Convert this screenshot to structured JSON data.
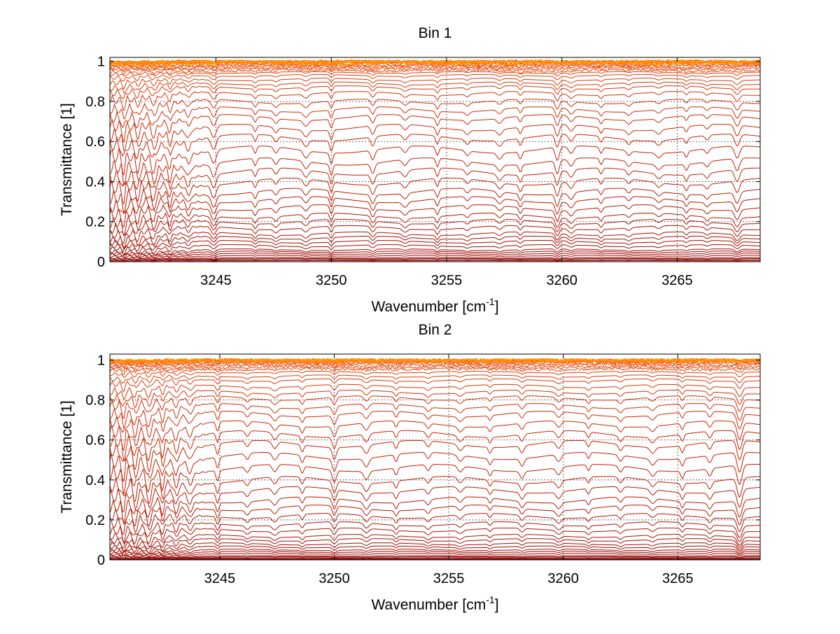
{
  "figure": {
    "background": "#ffffff",
    "grid_color": "#000000",
    "line_colors": {
      "deep": "#8b0000",
      "mid": "#cc2200",
      "top": "#ff6a1a",
      "highlight": "#ff9a00"
    }
  },
  "chart_data": [
    {
      "type": "line",
      "title": "Bin 1",
      "xlabel_main": "Wavenumber [cm",
      "xlabel_sup": "-1",
      "xlabel_end": "]",
      "ylabel": "Transmittance [1]",
      "xlim": [
        3240.4,
        3268.6
      ],
      "ylim": [
        0,
        1.02
      ],
      "xticks": [
        3245,
        3250,
        3255,
        3260,
        3265
      ],
      "xtick_labels": [
        "3245",
        "3250",
        "3255",
        "3260",
        "3265"
      ],
      "yticks": [
        0,
        0.2,
        0.4,
        0.6,
        0.8,
        1
      ],
      "ytick_labels": [
        "0",
        "0.2",
        "0.4",
        "0.6",
        "0.8",
        "1"
      ],
      "grid": true,
      "legend": "none",
      "series_count": 45,
      "series_baseline_levels": [
        0.005,
        0.01,
        0.015,
        0.02,
        0.03,
        0.04,
        0.05,
        0.06,
        0.08,
        0.1,
        0.12,
        0.14,
        0.17,
        0.2,
        0.23,
        0.27,
        0.31,
        0.35,
        0.4,
        0.45,
        0.5,
        0.56,
        0.62,
        0.67,
        0.72,
        0.76,
        0.8,
        0.84,
        0.87,
        0.89,
        0.91,
        0.93,
        0.945,
        0.955,
        0.965,
        0.973,
        0.98,
        0.985,
        0.99,
        0.994,
        0.997,
        0.999,
        1.0,
        1.0,
        1.0
      ],
      "absorption_lines_cm1": [
        3241.0,
        3241.6,
        3242.3,
        3243.0,
        3243.8,
        3244.9,
        3246.7,
        3247.6,
        3248.9,
        3250.0,
        3251.8,
        3253.2,
        3254.6,
        3255.9,
        3257.3,
        3258.2,
        3259.8,
        3260.4,
        3261.7,
        3262.9,
        3264.2,
        3265.4,
        3266.3,
        3267.6
      ],
      "absorption_depths": [
        0.6,
        0.5,
        0.55,
        0.5,
        0.35,
        0.55,
        0.3,
        0.25,
        0.3,
        0.45,
        0.4,
        0.25,
        0.35,
        0.2,
        0.25,
        0.3,
        0.55,
        0.3,
        0.25,
        0.2,
        0.2,
        0.25,
        0.2,
        0.5
      ]
    },
    {
      "type": "line",
      "title": "Bin 2",
      "xlabel_main": "Wavenumber [cm",
      "xlabel_sup": "-1",
      "xlabel_end": "]",
      "ylabel": "Transmittance [1]",
      "xlim": [
        3240.2,
        3268.6
      ],
      "ylim": [
        0,
        1.03
      ],
      "xticks": [
        3245,
        3250,
        3255,
        3260,
        3265
      ],
      "xtick_labels": [
        "3245",
        "3250",
        "3255",
        "3260",
        "3265"
      ],
      "yticks": [
        0,
        0.2,
        0.4,
        0.6,
        0.8,
        1
      ],
      "ytick_labels": [
        "0",
        "0.2",
        "0.4",
        "0.6",
        "0.8",
        "1"
      ],
      "grid": true,
      "legend": "none",
      "series_count": 45,
      "series_baseline_levels": [
        0.003,
        0.006,
        0.01,
        0.015,
        0.02,
        0.03,
        0.04,
        0.05,
        0.065,
        0.08,
        0.1,
        0.12,
        0.15,
        0.18,
        0.22,
        0.26,
        0.3,
        0.35,
        0.4,
        0.46,
        0.52,
        0.58,
        0.63,
        0.68,
        0.73,
        0.77,
        0.81,
        0.84,
        0.87,
        0.9,
        0.92,
        0.94,
        0.955,
        0.965,
        0.975,
        0.982,
        0.988,
        0.992,
        0.995,
        0.998,
        1.0,
        1.0,
        1.0,
        1.0,
        1.0
      ],
      "absorption_lines_cm1": [
        3240.8,
        3241.3,
        3241.9,
        3242.5,
        3243.1,
        3243.7,
        3244.9,
        3246.2,
        3247.4,
        3248.6,
        3250.0,
        3251.4,
        3252.7,
        3254.1,
        3255.5,
        3256.8,
        3258.2,
        3259.8,
        3261.1,
        3262.5,
        3263.9,
        3265.2,
        3266.4,
        3267.7
      ],
      "absorption_depths": [
        0.7,
        0.6,
        0.7,
        0.6,
        0.5,
        0.45,
        0.45,
        0.25,
        0.3,
        0.3,
        0.5,
        0.35,
        0.3,
        0.25,
        0.25,
        0.25,
        0.3,
        0.3,
        0.25,
        0.25,
        0.25,
        0.3,
        0.3,
        0.8
      ]
    }
  ]
}
